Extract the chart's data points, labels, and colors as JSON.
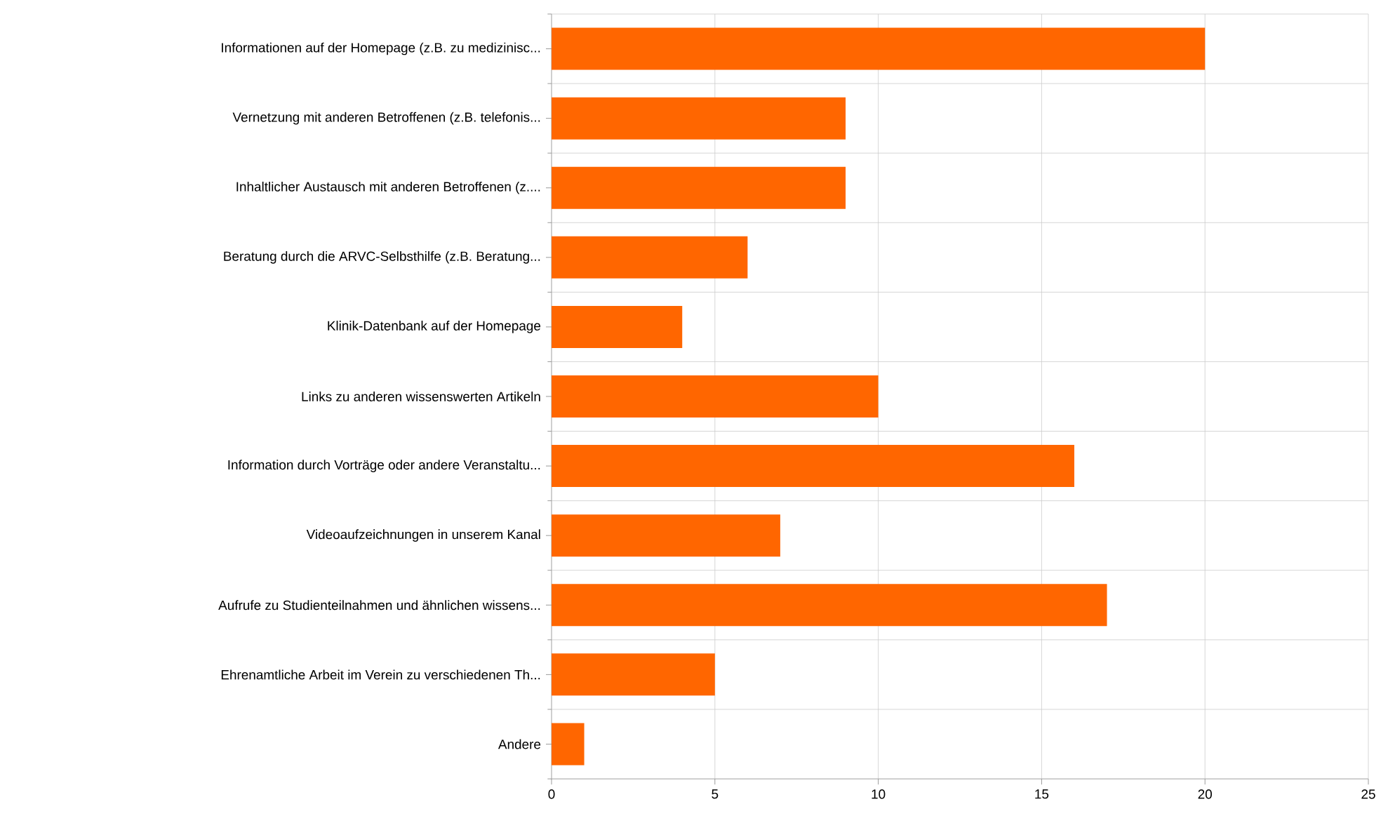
{
  "chart_data": {
    "type": "bar",
    "orientation": "horizontal",
    "categories": [
      "Informationen auf der Homepage (z.B. zu medizinisc...",
      "Vernetzung mit anderen Betroffenen (z.B. telefonis...",
      "Inhaltlicher Austausch mit anderen Betroffenen (z....",
      "Beratung durch die ARVC-Selbsthilfe (z.B. Beratung...",
      "Klinik-Datenbank auf der Homepage",
      "Links zu anderen wissenswerten Artikeln",
      "Information durch Vorträge oder andere Veranstaltu...",
      "Videoaufzeichnungen in unserem Kanal",
      "Aufrufe zu Studienteilnahmen und ähnlichen wissens...",
      "Ehrenamtliche Arbeit im Verein zu verschiedenen Th...",
      "Andere"
    ],
    "values": [
      20,
      9,
      9,
      6,
      4,
      10,
      16,
      7,
      17,
      5,
      1
    ],
    "color": "#ff6600",
    "xlim": [
      0,
      25
    ],
    "xticks": [
      0,
      5,
      10,
      15,
      20,
      25
    ],
    "grid": true
  }
}
